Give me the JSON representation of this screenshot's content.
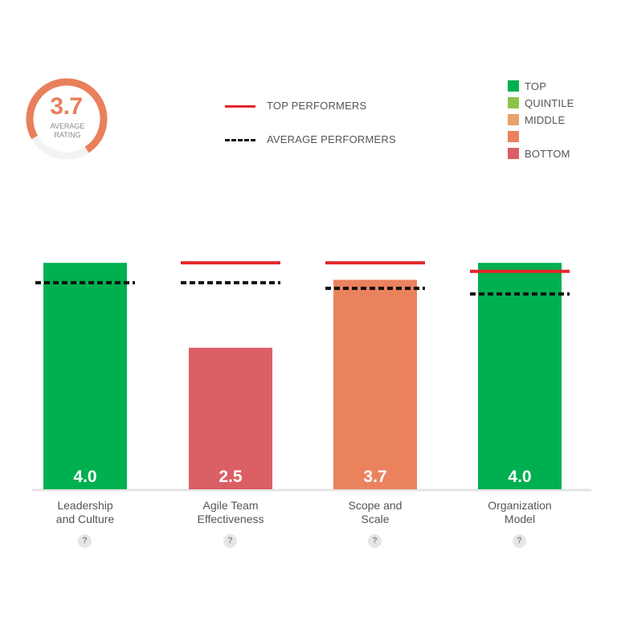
{
  "summary": {
    "value": "3.7",
    "caption_line1": "AVERAGE",
    "caption_line2": "RATING",
    "progress_fraction": 0.74,
    "color": "#E8805B"
  },
  "reference_legend": {
    "top_performers": "TOP PERFORMERS",
    "average_performers": "AVERAGE PERFORMERS"
  },
  "category_legend": [
    {
      "label": "TOP",
      "color": "#00B050"
    },
    {
      "label": "QUINTILE",
      "color": "#8BC34A"
    },
    {
      "label": "MIDDLE",
      "color": "#E8A26A"
    },
    {
      "label": "",
      "color": "#EA825E"
    },
    {
      "label": "BOTTOM",
      "color": "#DB6065"
    }
  ],
  "help_icon_glyph": "?",
  "chart_data": {
    "type": "bar",
    "categories": [
      "Leadership and Culture",
      "Agile Team Effectiveness",
      "Scope and Scale",
      "Organization Model"
    ],
    "category_lines": [
      [
        "Leadership",
        "and Culture"
      ],
      [
        "Agile Team",
        "Effectiveness"
      ],
      [
        "Scope and",
        "Scale"
      ],
      [
        "Organization",
        "Model"
      ]
    ],
    "values": [
      4.0,
      2.5,
      3.7,
      4.0
    ],
    "value_labels": [
      "4.0",
      "2.5",
      "3.7",
      "4.0"
    ],
    "bar_colors": [
      "#00B050",
      "#DB6065",
      "#EA825E",
      "#00B050"
    ],
    "top_performers": [
      null,
      4.0,
      4.0,
      3.85
    ],
    "average_performers": [
      3.65,
      3.65,
      3.55,
      3.45
    ],
    "ylim": [
      0,
      4.4
    ],
    "grid": false,
    "title": "",
    "xlabel": "",
    "ylabel": ""
  }
}
